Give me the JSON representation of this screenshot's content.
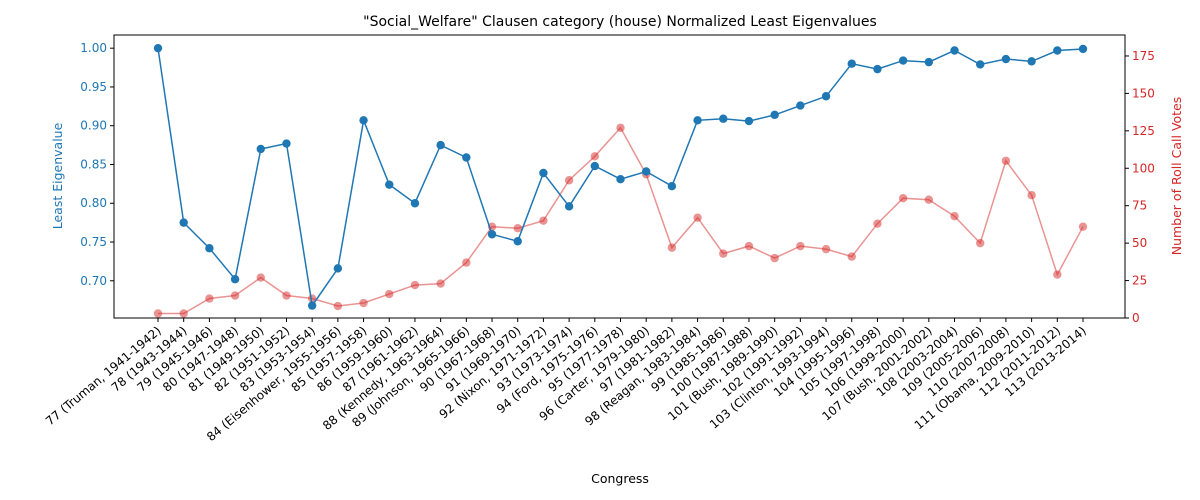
{
  "chart_data": {
    "type": "line",
    "title": "\"Social_Welfare\" Clausen category (house) Normalized Least Eigenvalues",
    "xlabel": "Congress",
    "ylabel_left": "Least Eigenvalue",
    "ylabel_right": "Number of Roll Call Votes",
    "categories": [
      "77 (Truman, 1941-1942)",
      "78 (1943-1944)",
      "79 (1945-1946)",
      "80 (1947-1948)",
      "81 (1949-1950)",
      "82 (1951-1952)",
      "83 (1953-1954)",
      "84 (Eisenhower, 1955-1956)",
      "85 (1957-1958)",
      "86 (1959-1960)",
      "87 (1961-1962)",
      "88 (Kennedy, 1963-1964)",
      "89 (Johnson, 1965-1966)",
      "90 (1967-1968)",
      "91 (1969-1970)",
      "92 (Nixon, 1971-1972)",
      "93 (1973-1974)",
      "94 (Ford, 1975-1976)",
      "95 (1977-1978)",
      "96 (Carter, 1979-1980)",
      "97 (1981-1982)",
      "98 (Reagan, 1983-1984)",
      "99 (1985-1986)",
      "100 (1987-1988)",
      "101 (Bush, 1989-1990)",
      "102 (1991-1992)",
      "103 (Clinton, 1993-1994)",
      "104 (1995-1996)",
      "105 (1997-1998)",
      "106 (1999-2000)",
      "107 (Bush, 2001-2002)",
      "108 (2003-2004)",
      "109 (2005-2006)",
      "110 (2007-2008)",
      "111 (Obama, 2009-2010)",
      "112 (2011-2012)",
      "113 (2013-2014)"
    ],
    "series": [
      {
        "name": "Least Eigenvalue",
        "axis": "left",
        "color": "#1f77b4",
        "values": [
          1.0,
          0.775,
          0.742,
          0.702,
          0.87,
          0.877,
          0.668,
          0.716,
          0.907,
          0.824,
          0.8,
          0.875,
          0.859,
          0.76,
          0.751,
          0.839,
          0.796,
          0.848,
          0.831,
          0.841,
          0.822,
          0.907,
          0.909,
          0.906,
          0.914,
          0.926,
          0.938,
          0.98,
          0.973,
          0.984,
          0.982,
          0.997,
          0.979,
          0.986,
          0.983,
          0.997,
          0.999
        ]
      },
      {
        "name": "Number of Roll Call Votes",
        "axis": "right",
        "color": "#d62728",
        "values": [
          3,
          3,
          13,
          15,
          27,
          15,
          13,
          8,
          10,
          16,
          22,
          23,
          37,
          61,
          60,
          65,
          92,
          108,
          127,
          96,
          47,
          67,
          43,
          48,
          40,
          48,
          46,
          41,
          63,
          80,
          79,
          68,
          50,
          105,
          82,
          29,
          61
        ]
      }
    ],
    "ylim_left": [
      0.652,
      1.017
    ],
    "ylim_right": [
      0,
      189
    ],
    "yticks_left": [
      "0.70",
      "0.75",
      "0.80",
      "0.85",
      "0.90",
      "0.95",
      "1.00"
    ],
    "yticks_right": [
      "0",
      "25",
      "50",
      "75",
      "100",
      "125",
      "150",
      "175"
    ],
    "grid": false,
    "legend": "none"
  }
}
